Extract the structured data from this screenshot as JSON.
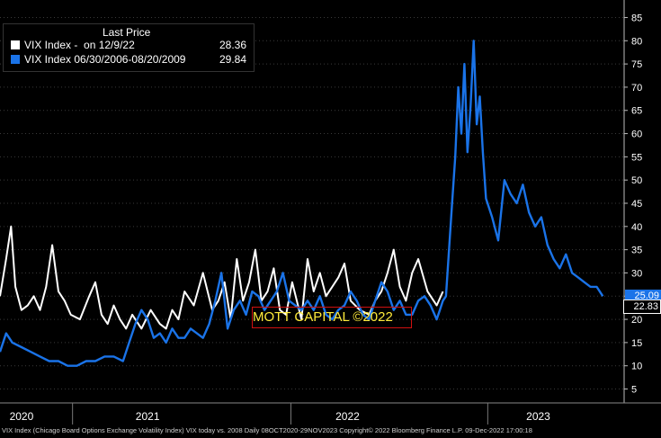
{
  "legend": {
    "header": "Last Price",
    "items": [
      {
        "label": "VIX Index -  on 12/9/22",
        "value": "28.36",
        "color": "#ffffff"
      },
      {
        "label": "VIX Index 06/30/2006-08/20/2009",
        "value": "29.84",
        "color": "#1a73e8"
      }
    ]
  },
  "watermark": "MOTT CAPITAL ©2022",
  "footer": "VIX Index (Chicago Board Options Exchange Volatility Index) VIX today vs. 2008  Daily 08OCT2020-29NOV2023  Copyright© 2022 Bloomberg Finance L.P.  09-Dec-2022 17:00:18",
  "badges": [
    {
      "value": "25.09",
      "bg": "#1a73e8",
      "fg": "#ffffff",
      "y": 25.09
    },
    {
      "value": "22.83",
      "bg": "#000000",
      "fg": "#ffffff",
      "y": 22.83
    }
  ],
  "chart_data": {
    "type": "line",
    "ylim": [
      2,
      88
    ],
    "y_ticks": [
      5,
      10,
      15,
      20,
      25,
      30,
      35,
      40,
      45,
      50,
      55,
      60,
      65,
      70,
      75,
      80,
      85
    ],
    "x_labels": [
      {
        "label": "2020",
        "t": 0.035
      },
      {
        "label": "2021",
        "t": 0.24
      },
      {
        "label": "2022",
        "t": 0.565
      },
      {
        "label": "2023",
        "t": 0.875
      }
    ],
    "series": [
      {
        "name": "VIX Index -  on 12/9/22",
        "color": "#ffffff",
        "t": [
          0.0,
          0.01,
          0.018,
          0.025,
          0.035,
          0.045,
          0.055,
          0.065,
          0.075,
          0.085,
          0.095,
          0.105,
          0.115,
          0.13,
          0.145,
          0.155,
          0.165,
          0.175,
          0.185,
          0.195,
          0.205,
          0.215,
          0.23,
          0.245,
          0.26,
          0.27,
          0.28,
          0.29,
          0.3,
          0.315,
          0.33,
          0.345,
          0.355,
          0.365,
          0.375,
          0.385,
          0.395,
          0.405,
          0.415,
          0.425,
          0.435,
          0.445,
          0.455,
          0.465,
          0.475,
          0.49,
          0.5,
          0.51,
          0.52,
          0.53,
          0.54,
          0.55,
          0.56,
          0.57,
          0.585,
          0.6,
          0.61,
          0.62,
          0.63,
          0.64,
          0.65,
          0.66,
          0.67,
          0.68,
          0.695,
          0.71,
          0.72
        ],
        "y": [
          25,
          33,
          40,
          27,
          22,
          23,
          25,
          22,
          27,
          36,
          26,
          24,
          21,
          20,
          25,
          28,
          21,
          19,
          23,
          20,
          18,
          21,
          18,
          22,
          19,
          18,
          22,
          20,
          26,
          23,
          30,
          22,
          24,
          28,
          20,
          33,
          24,
          28,
          35,
          24,
          26,
          31,
          22,
          21,
          28,
          20,
          33,
          26,
          30,
          25,
          27,
          29,
          32,
          24,
          22,
          21,
          24,
          26,
          30,
          35,
          27,
          24,
          30,
          33,
          26,
          23,
          26
        ]
      },
      {
        "name": "VIX Index 06/30/2006-08/20/2009",
        "color": "#1a73e8",
        "t": [
          0.0,
          0.01,
          0.02,
          0.035,
          0.05,
          0.065,
          0.08,
          0.095,
          0.11,
          0.125,
          0.14,
          0.155,
          0.17,
          0.185,
          0.2,
          0.21,
          0.22,
          0.23,
          0.24,
          0.25,
          0.26,
          0.27,
          0.28,
          0.29,
          0.3,
          0.31,
          0.32,
          0.33,
          0.34,
          0.35,
          0.36,
          0.37,
          0.38,
          0.39,
          0.4,
          0.41,
          0.42,
          0.43,
          0.44,
          0.45,
          0.46,
          0.47,
          0.48,
          0.49,
          0.5,
          0.51,
          0.52,
          0.53,
          0.54,
          0.55,
          0.56,
          0.57,
          0.58,
          0.59,
          0.6,
          0.61,
          0.62,
          0.63,
          0.64,
          0.65,
          0.66,
          0.67,
          0.68,
          0.69,
          0.7,
          0.71,
          0.715,
          0.72,
          0.725,
          0.73,
          0.735,
          0.74,
          0.745,
          0.75,
          0.755,
          0.76,
          0.765,
          0.77,
          0.775,
          0.78,
          0.785,
          0.79,
          0.8,
          0.81,
          0.82,
          0.83,
          0.84,
          0.85,
          0.86,
          0.87,
          0.88,
          0.89,
          0.9,
          0.91,
          0.92,
          0.93,
          0.94,
          0.95,
          0.96,
          0.97,
          0.98
        ],
        "y": [
          13,
          17,
          15,
          14,
          13,
          12,
          11,
          11,
          10,
          10,
          11,
          11,
          12,
          12,
          11,
          15,
          19,
          22,
          20,
          16,
          17,
          15,
          18,
          16,
          16,
          18,
          17,
          16,
          19,
          24,
          30,
          18,
          22,
          24,
          21,
          26,
          25,
          22,
          24,
          26,
          30,
          24,
          23,
          22,
          24,
          22,
          25,
          21,
          20,
          22,
          23,
          26,
          24,
          21,
          20,
          24,
          28,
          26,
          22,
          24,
          21,
          21,
          24,
          25,
          23,
          20,
          22,
          24,
          25,
          35,
          45,
          55,
          70,
          60,
          75,
          56,
          66,
          80,
          62,
          68,
          56,
          46,
          42,
          37,
          50,
          47,
          45,
          49,
          43,
          40,
          42,
          36,
          33,
          31,
          34,
          30,
          29,
          28,
          27,
          27,
          25
        ]
      }
    ]
  }
}
